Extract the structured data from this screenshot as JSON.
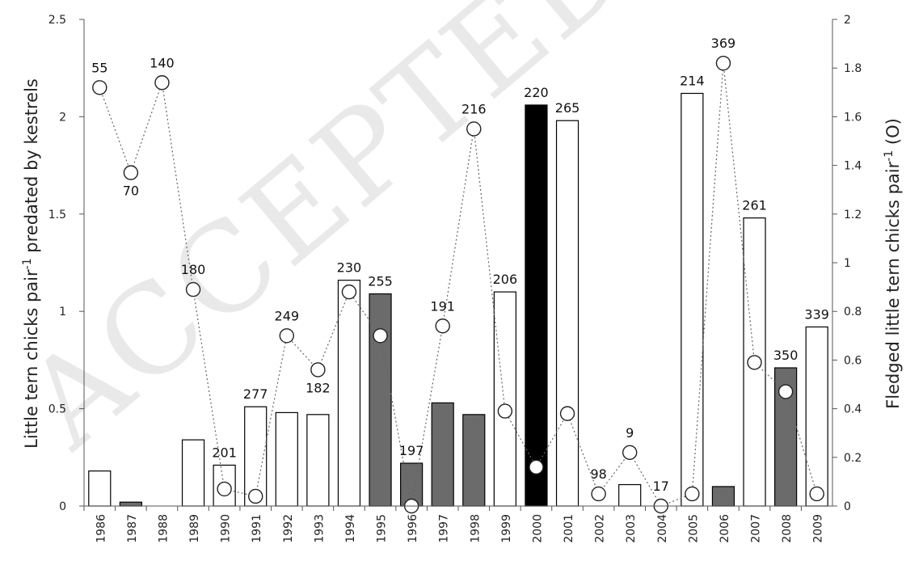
{
  "chart_data": {
    "type": "bar",
    "watermark": "ACCEPTED MA",
    "ylabel": "Little tern chicks pair-1 predated by kestrels",
    "y2label": "Fledged little tern chicks pair-1 (O)",
    "ylim": [
      0,
      2.5
    ],
    "y2lim": [
      0,
      2
    ],
    "yticks": [
      "0",
      "0.5",
      "1",
      "1.5",
      "2",
      "2.5"
    ],
    "y2ticks": [
      "0",
      "0.2",
      "0.4",
      "0.6",
      "0.8",
      "1",
      "1.2",
      "1.4",
      "1.6",
      "1.8",
      "2"
    ],
    "categories": [
      "1986",
      "1987",
      "1988",
      "1989",
      "1990",
      "1991",
      "1992",
      "1993",
      "1994",
      "1995",
      "1996",
      "1997",
      "1998",
      "1999",
      "2000",
      "2001",
      "2002",
      "2003",
      "2004",
      "2005",
      "2006",
      "2007",
      "2008",
      "2009"
    ],
    "predated": [
      0.18,
      0.02,
      0.0,
      0.34,
      0.21,
      0.51,
      0.48,
      0.47,
      1.16,
      1.09,
      0.22,
      0.53,
      0.47,
      1.1,
      2.06,
      1.98,
      0.0,
      0.11,
      0.0,
      2.12,
      0.1,
      1.48,
      0.71,
      0.92
    ],
    "bar_fill": [
      "#ffffff",
      "#6b6b6b",
      "#ffffff",
      "#ffffff",
      "#ffffff",
      "#ffffff",
      "#ffffff",
      "#ffffff",
      "#ffffff",
      "#6b6b6b",
      "#6b6b6b",
      "#6b6b6b",
      "#6b6b6b",
      "#ffffff",
      "#000000",
      "#ffffff",
      "#ffffff",
      "#ffffff",
      "#ffffff",
      "#ffffff",
      "#6b6b6b",
      "#ffffff",
      "#6b6b6b",
      "#ffffff"
    ],
    "fledged": [
      1.72,
      1.37,
      1.74,
      0.89,
      0.07,
      0.04,
      0.7,
      0.56,
      0.88,
      0.7,
      0.0,
      0.74,
      1.55,
      0.39,
      0.16,
      0.38,
      0.05,
      0.22,
      0.0,
      0.05,
      1.82,
      0.59,
      0.47,
      0.05
    ],
    "marker_fill": [
      "#ffffff",
      "#ffffff",
      "#ffffff",
      "#ffffff",
      "#ffffff",
      "#ffffff",
      "#ffffff",
      "#ffffff",
      "#ffffff",
      "#ffffff",
      "#ffffff",
      "#ffffff",
      "#ffffff",
      "#ffffff",
      "#ffffff",
      "#ffffff",
      "#ffffff",
      "#ffffff",
      "#ffffff",
      "#ffffff",
      "#ffffff",
      "#ffffff",
      "#ffffff",
      "#ffffff"
    ],
    "pairs": [
      "55",
      "70",
      "140",
      "180",
      "201",
      "277",
      "249",
      "182",
      "230",
      "255",
      "197",
      "191",
      "216",
      "206",
      "220",
      "265",
      "98",
      "9",
      "17",
      "214",
      "369",
      "261",
      "350",
      "339"
    ]
  }
}
